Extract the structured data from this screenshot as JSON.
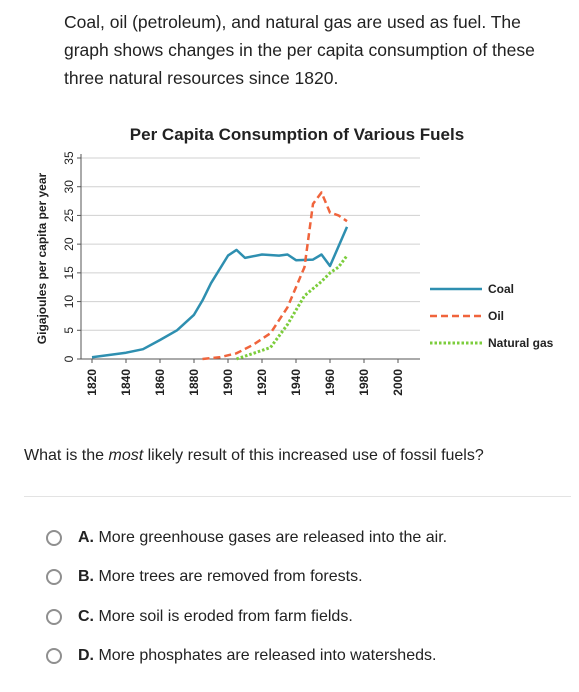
{
  "intro_text": "Coal, oil (petroleum), and natural gas are used as fuel. The graph shows changes in the per capita consumption of these three natural resources since 1820.",
  "question": {
    "prefix": "What is the ",
    "emphasis": "most",
    "suffix": " likely result of this increased use of fossil fuels?"
  },
  "options": [
    {
      "letter": "A.",
      "text": "More greenhouse gases are released into the air."
    },
    {
      "letter": "B.",
      "text": "More trees are removed from forests."
    },
    {
      "letter": "C.",
      "text": "More soil is eroded from farm fields."
    },
    {
      "letter": "D.",
      "text": "More phosphates are released into watersheds."
    }
  ],
  "colors": {
    "coal": "#2e8fb0",
    "oil": "#f0643c",
    "gas": "#7ccd3c",
    "grid": "#d0d0d0"
  },
  "chart_data": {
    "type": "line",
    "title": "Per Capita Consumption of Various Fuels",
    "ylabel": "Gigajoules per capita per year",
    "xlabel": "",
    "xlim": [
      1820,
      2010
    ],
    "ylim": [
      0,
      35
    ],
    "x_ticks": [
      1820,
      1840,
      1860,
      1880,
      1900,
      1920,
      1940,
      1960,
      1980,
      2000
    ],
    "y_ticks": [
      0,
      5,
      10,
      15,
      20,
      25,
      30,
      35
    ],
    "grid": true,
    "legend_position": "right",
    "series": [
      {
        "name": "Coal",
        "style": "solid",
        "color": "#2e8fb0",
        "points": [
          [
            1820,
            0.3
          ],
          [
            1830,
            0.7
          ],
          [
            1840,
            1.1
          ],
          [
            1850,
            1.7
          ],
          [
            1860,
            3.3
          ],
          [
            1870,
            5
          ],
          [
            1880,
            7.7
          ],
          [
            1885,
            10.2
          ],
          [
            1890,
            13.2
          ],
          [
            1900,
            18
          ],
          [
            1905,
            19
          ],
          [
            1910,
            17.6
          ],
          [
            1920,
            18.2
          ],
          [
            1930,
            18
          ],
          [
            1935,
            18.2
          ],
          [
            1940,
            17.2
          ],
          [
            1950,
            17.3
          ],
          [
            1955,
            18.2
          ],
          [
            1960,
            16.2
          ],
          [
            1970,
            23
          ]
        ]
      },
      {
        "name": "Oil",
        "style": "dashed",
        "color": "#f0643c",
        "points": [
          [
            1885,
            0
          ],
          [
            1895,
            0.3
          ],
          [
            1905,
            1
          ],
          [
            1915,
            2.5
          ],
          [
            1925,
            4.5
          ],
          [
            1935,
            9
          ],
          [
            1945,
            16
          ],
          [
            1950,
            27
          ],
          [
            1955,
            29
          ],
          [
            1960,
            25.5
          ],
          [
            1965,
            25
          ],
          [
            1970,
            24
          ]
        ]
      },
      {
        "name": "Natural gas",
        "style": "dotted",
        "color": "#7ccd3c",
        "points": [
          [
            1905,
            0
          ],
          [
            1915,
            1
          ],
          [
            1925,
            2
          ],
          [
            1935,
            6
          ],
          [
            1945,
            11
          ],
          [
            1955,
            13.5
          ],
          [
            1960,
            15
          ],
          [
            1965,
            16
          ],
          [
            1970,
            18
          ]
        ]
      }
    ]
  }
}
